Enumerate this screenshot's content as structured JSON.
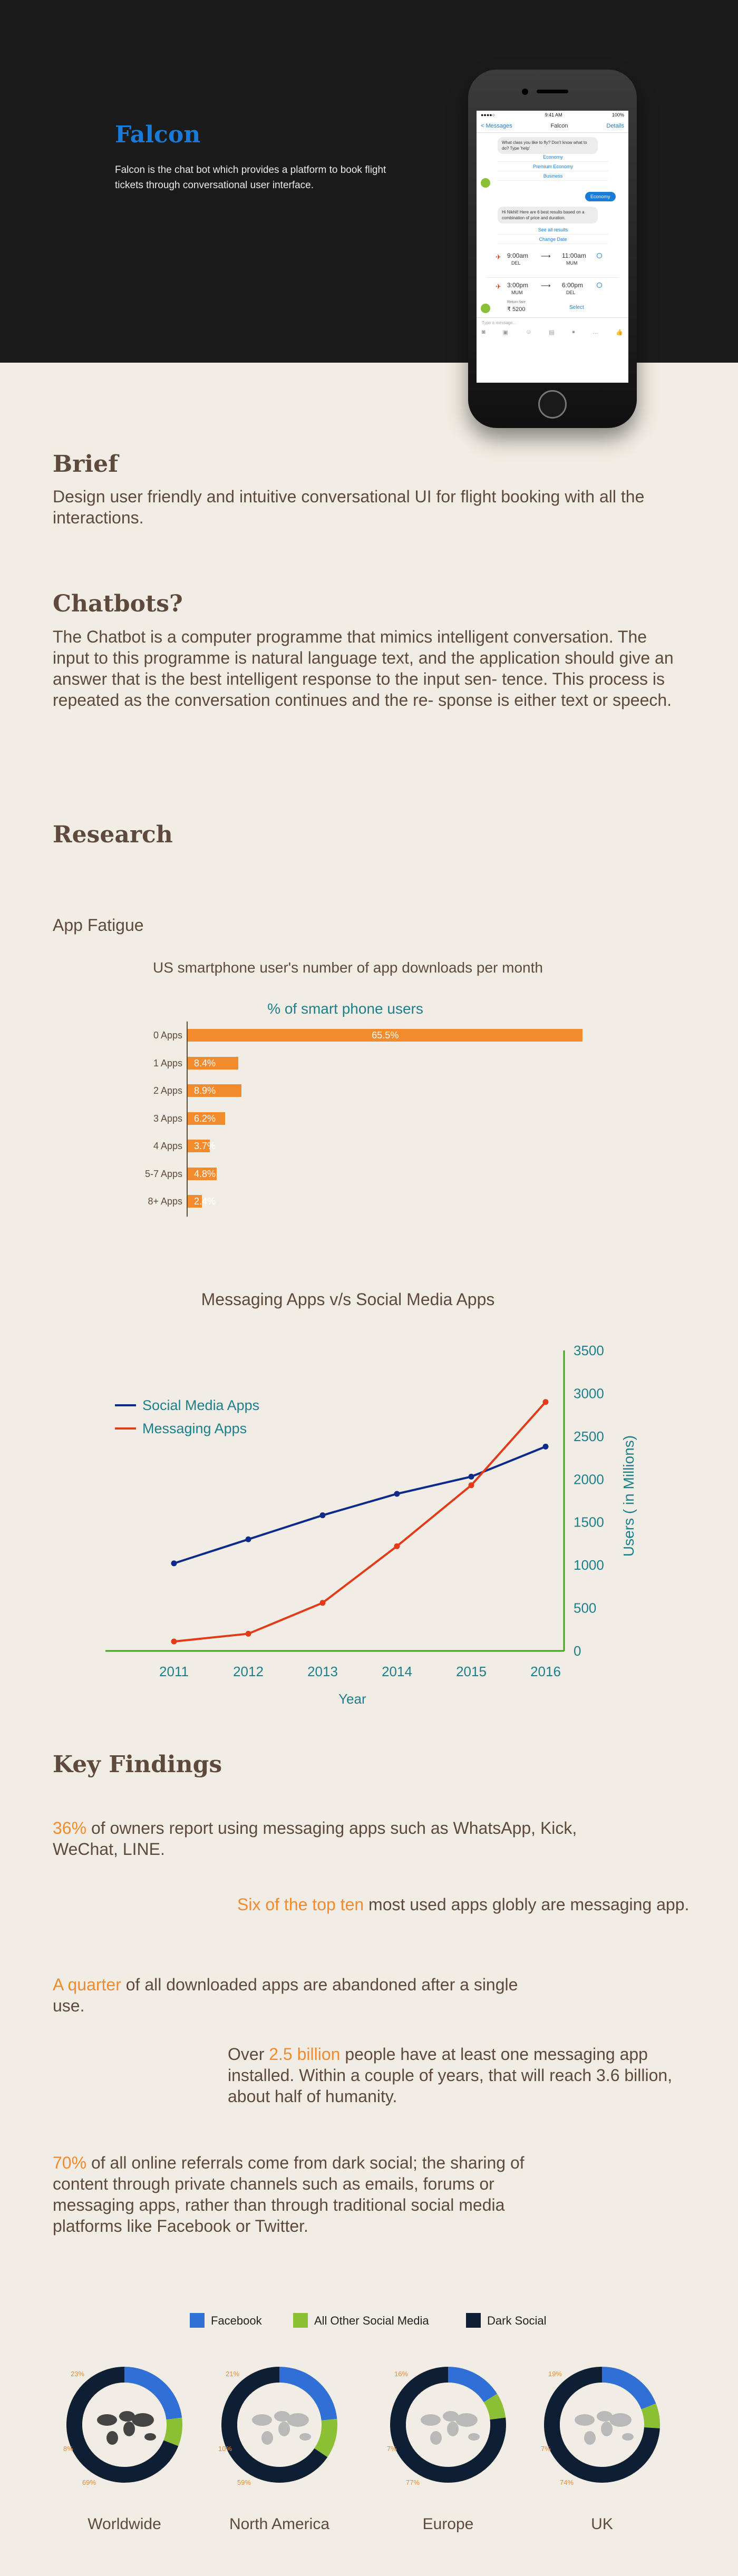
{
  "hero": {
    "title": "Falcon",
    "description": "Falcon is the chat bot which provides a platform to book flight tickets through conversational user interface."
  },
  "phone": {
    "status_carrier": "●●●●○",
    "status_time": "9:41 AM",
    "status_battery": "100%",
    "back_label": "< Messages",
    "chat_title": "Falcon",
    "details_label": "Details",
    "bot_question": "What class you like to fly? Don't know what to do? Type 'help'",
    "class_options": [
      "Economy",
      "Premium Economy",
      "Business"
    ],
    "user_reply": "Economy",
    "bot_results": "Hi Nikhil! Here are 6 best results based on a combination of price and duration.",
    "see_all": "See all results",
    "change_date": "Change Date",
    "flights": [
      {
        "dep": "9:00am",
        "from": "DEL",
        "arr": "11:00am",
        "to": "MUM"
      },
      {
        "dep": "3:00pm",
        "from": "MUM",
        "arr": "6:00pm",
        "to": "DEL"
      }
    ],
    "fare_label": "Return fare",
    "fare": "₹ 5200",
    "select_label": "Select",
    "input_placeholder": "Type a message..."
  },
  "brief": {
    "heading": "Brief",
    "text": "Design user friendly and intuitive conversational UI for flight booking with all the interactions."
  },
  "chatbots": {
    "heading": "Chatbots?",
    "text": "The Chatbot is a computer programme that mimics intelligent conversation. The input to this programme is natural language text, and the application should give an answer that is the best intelligent response to the input sen- tence. This process is repeated as the conversation continues and the re- sponse is either text or speech."
  },
  "research": {
    "heading": "Research",
    "subheading": "App Fatigue"
  },
  "colors": {
    "accent_blue": "#1a7bd6",
    "orange": "#f28a2e",
    "teal": "#1b7f8c",
    "navy": "#0b2a8c",
    "red": "#e33a1a",
    "axis_green": "#3aa21b",
    "facebook": "#2f6fd6",
    "other_social": "#8bc034",
    "dark_social": "#0f1f33"
  },
  "chart_data": [
    {
      "type": "bar",
      "title": "US  smartphone user's number of app downloads per month",
      "subtitle": "% of smart phone users",
      "categories": [
        "0 Apps",
        "1 Apps",
        "2 Apps",
        "3 Apps",
        "4 Apps",
        "5-7 Apps",
        "8+ Apps"
      ],
      "values": [
        65.5,
        8.4,
        8.9,
        6.2,
        3.7,
        4.8,
        2.4
      ],
      "value_labels": [
        "65.5%",
        "8.4%",
        "8.9%",
        "6.2%",
        "3.7%",
        "4.8%",
        "2.4%"
      ],
      "xlim": [
        0,
        70
      ]
    },
    {
      "type": "line",
      "title": "Messaging Apps v/s Social Media Apps",
      "xlabel": "Year",
      "ylabel": "Users ( in Millions)",
      "x": [
        2011,
        2012,
        2013,
        2014,
        2015,
        2016
      ],
      "x_ticks": [
        "2011",
        "2012",
        "2013",
        "2014",
        "2015",
        "2016"
      ],
      "y_ticks": [
        "0",
        "500",
        "1000",
        "1500",
        "2000",
        "2500",
        "3000",
        "3500"
      ],
      "ylim": [
        0,
        3500
      ],
      "legend_position": "top-left",
      "series": [
        {
          "name": "Social Media Apps",
          "values": [
            1020,
            1300,
            1580,
            1830,
            2030,
            2380
          ]
        },
        {
          "name": "Messaging Apps",
          "values": [
            110,
            200,
            560,
            1220,
            1930,
            2900
          ]
        }
      ]
    },
    {
      "type": "pie",
      "legend": [
        "Facebook",
        "All Other Social Media",
        "Dark Social"
      ],
      "charts": [
        {
          "label": "Worldwide",
          "values": [
            23,
            8,
            69
          ],
          "labels": [
            "23%",
            "8%",
            "69%"
          ]
        },
        {
          "label": "North America",
          "values": [
            21,
            10,
            59
          ],
          "labels": [
            "21%",
            "10%",
            "59%"
          ]
        },
        {
          "label": "Europe",
          "values": [
            16,
            7,
            77
          ],
          "labels": [
            "16%",
            "7%",
            "77%"
          ]
        },
        {
          "label": "UK",
          "values": [
            19,
            7,
            74
          ],
          "labels": [
            "19%",
            "7%",
            "74%"
          ]
        }
      ]
    }
  ],
  "findings": {
    "heading": "Key Findings",
    "f1_hi": "36%",
    "f1_rest": " of owners report using messaging apps such as WhatsApp, Kick, WeChat, LINE.",
    "f2_hi": "Six of the top ten",
    "f2_rest": " most used apps globly are messaging app.",
    "f3_hi": "A quarter",
    "f3_rest": " of all downloaded apps are abandoned after a single use.",
    "f4_pre": "Over ",
    "f4_hi": "2.5 billion",
    "f4_rest": " people have at least one messaging app installed. Within a couple of years, that will reach 3.6 billion, about half of humanity.",
    "f5_hi": "70%",
    "f5_rest": " of all online referrals come from dark social; the sharing of content through private channels such as emails, forums or messaging apps, rather than through traditional social media platforms like Facebook or Twitter."
  }
}
